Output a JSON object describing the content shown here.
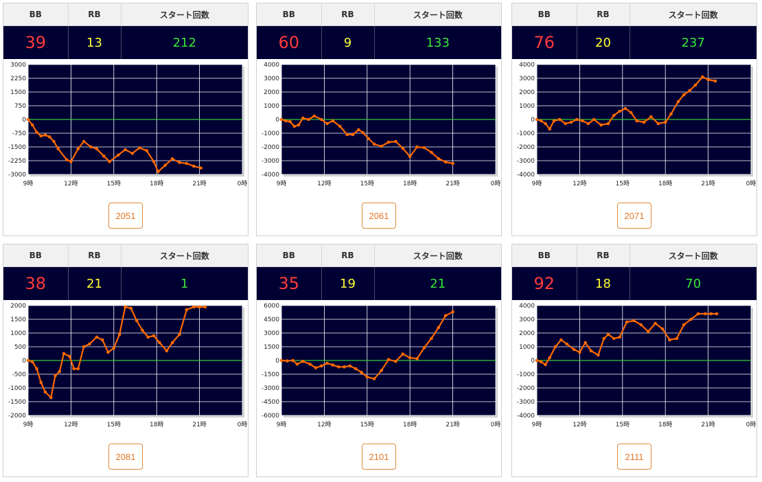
{
  "headers": {
    "bb": "BB",
    "rb": "RB",
    "start": "スタート回数"
  },
  "colors": {
    "bb": "#ff3b3b",
    "rb": "#ffff33",
    "start": "#39e639",
    "plot_bg": "#000033",
    "line": "#ff6a00",
    "zero_line": "#33cc33",
    "button": "#e0782a"
  },
  "cards": [
    {
      "bb": "39",
      "rb": "13",
      "start": "212",
      "machine": "2051"
    },
    {
      "bb": "60",
      "rb": "9",
      "start": "133",
      "machine": "2061"
    },
    {
      "bb": "76",
      "rb": "20",
      "start": "237",
      "machine": "2071"
    },
    {
      "bb": "38",
      "rb": "21",
      "start": "1",
      "machine": "2081"
    },
    {
      "bb": "35",
      "rb": "19",
      "start": "21",
      "machine": "2101"
    },
    {
      "bb": "92",
      "rb": "18",
      "start": "70",
      "machine": "2111"
    }
  ],
  "chart_data": [
    {
      "type": "line",
      "x_ticks": [
        "9時",
        "12時",
        "15時",
        "18時",
        "21時",
        "0時"
      ],
      "xlim": [
        9,
        24
      ],
      "y_ticks": [
        "3000",
        "2250",
        "1500",
        "750",
        "0",
        "-750",
        "-1500",
        "-2250",
        "-3000"
      ],
      "ylim": [
        -3000,
        3000
      ],
      "grid": true,
      "x": [
        9.0,
        9.3,
        9.6,
        9.9,
        10.2,
        10.5,
        10.8,
        11.1,
        11.7,
        12.0,
        12.5,
        12.9,
        13.4,
        13.8,
        14.3,
        14.7,
        15.3,
        15.8,
        16.3,
        16.8,
        17.3,
        17.8,
        18.1,
        18.6,
        19.1,
        19.6,
        20.1,
        20.6,
        21.1
      ],
      "y": [
        0,
        -300,
        -700,
        -900,
        -850,
        -950,
        -1200,
        -1600,
        -2200,
        -2300,
        -1600,
        -1200,
        -1500,
        -1600,
        -2000,
        -2300,
        -1950,
        -1650,
        -1850,
        -1550,
        -1700,
        -2300,
        -2850,
        -2500,
        -2150,
        -2350,
        -2400,
        -2550,
        -2650
      ]
    },
    {
      "type": "line",
      "x_ticks": [
        "9時",
        "12時",
        "15時",
        "18時",
        "21時",
        "0時"
      ],
      "xlim": [
        9,
        24
      ],
      "y_ticks": [
        "4000",
        "3000",
        "2000",
        "1000",
        "0",
        "-1000",
        "-2000",
        "-3000",
        "-4000"
      ],
      "ylim": [
        -4000,
        4000
      ],
      "grid": true,
      "x": [
        9.0,
        9.3,
        9.6,
        9.9,
        10.2,
        10.5,
        10.9,
        11.3,
        11.8,
        12.2,
        12.6,
        13.1,
        13.6,
        14.0,
        14.4,
        14.7,
        15.1,
        15.5,
        16.0,
        16.5,
        17.0,
        17.5,
        18.0,
        18.5,
        19.0,
        19.5,
        20.0,
        20.5,
        21.0
      ],
      "y": [
        0,
        -100,
        -150,
        -500,
        -400,
        100,
        0,
        250,
        0,
        -300,
        -100,
        -500,
        -1100,
        -1100,
        -750,
        -950,
        -1400,
        -1800,
        -1950,
        -1650,
        -1600,
        -2100,
        -2700,
        -2000,
        -2050,
        -2400,
        -2850,
        -3100,
        -3200
      ]
    },
    {
      "type": "line",
      "x_ticks": [
        "9時",
        "12時",
        "15時",
        "18時",
        "21時",
        "0時"
      ],
      "xlim": [
        9,
        24
      ],
      "y_ticks": [
        "4000",
        "3000",
        "2000",
        "1000",
        "0",
        "-1000",
        "-2000",
        "-3000",
        "-4000"
      ],
      "ylim": [
        -4000,
        4000
      ],
      "grid": true,
      "x": [
        9.0,
        9.3,
        9.6,
        9.9,
        10.2,
        10.6,
        11.0,
        11.4,
        11.8,
        12.2,
        12.6,
        13.0,
        13.5,
        14.0,
        14.4,
        14.8,
        15.2,
        15.6,
        16.0,
        16.5,
        17.0,
        17.5,
        18.0,
        18.4,
        18.9,
        19.3,
        19.7,
        20.1,
        20.6,
        21.0,
        21.5
      ],
      "y": [
        0,
        -100,
        -300,
        -700,
        -100,
        0,
        -300,
        -200,
        0,
        -100,
        -300,
        0,
        -400,
        -300,
        300,
        600,
        800,
        500,
        -100,
        -200,
        200,
        -300,
        -200,
        400,
        1300,
        1800,
        2100,
        2500,
        3100,
        2900,
        2800
      ]
    },
    {
      "type": "line",
      "x_ticks": [
        "9時",
        "12時",
        "15時",
        "18時",
        "21時",
        "0時"
      ],
      "xlim": [
        9,
        24
      ],
      "y_ticks": [
        "2000",
        "1500",
        "1000",
        "500",
        "0",
        "-500",
        "-1000",
        "-1500",
        "-2000"
      ],
      "ylim": [
        -2000,
        2000
      ],
      "grid": true,
      "x": [
        9.0,
        9.3,
        9.6,
        9.9,
        10.2,
        10.6,
        10.9,
        11.2,
        11.5,
        11.9,
        12.2,
        12.5,
        12.9,
        13.3,
        13.8,
        14.2,
        14.6,
        15.0,
        15.4,
        15.8,
        16.2,
        16.6,
        17.0,
        17.4,
        17.8,
        18.2,
        18.7,
        19.1,
        19.6,
        20.1,
        20.6,
        21.0,
        21.4
      ],
      "y": [
        0,
        -50,
        -300,
        -800,
        -1150,
        -1350,
        -550,
        -400,
        250,
        150,
        -300,
        -300,
        500,
        600,
        850,
        750,
        300,
        450,
        950,
        1950,
        1900,
        1450,
        1100,
        850,
        900,
        650,
        350,
        650,
        950,
        1850,
        1950,
        1950,
        1950
      ]
    },
    {
      "type": "line",
      "x_ticks": [
        "9時",
        "12時",
        "15時",
        "18時",
        "21時",
        "0時"
      ],
      "xlim": [
        9,
        24
      ],
      "y_ticks": [
        "6000",
        "4500",
        "3000",
        "1500",
        "0",
        "-1500",
        "-3000",
        "-4500",
        "-6000"
      ],
      "ylim": [
        -6000,
        6000
      ],
      "grid": true,
      "x": [
        9.0,
        9.4,
        9.8,
        10.1,
        10.5,
        11.0,
        11.4,
        11.8,
        12.2,
        12.6,
        13.0,
        13.4,
        13.8,
        14.2,
        14.6,
        15.0,
        15.5,
        16.0,
        16.5,
        17.0,
        17.5,
        18.0,
        18.5,
        19.0,
        19.5,
        20.0,
        20.5,
        21.0
      ],
      "y": [
        0,
        -50,
        0,
        -400,
        -100,
        -400,
        -800,
        -600,
        -300,
        -500,
        -700,
        -700,
        -600,
        -900,
        -1300,
        -1800,
        -2000,
        -1100,
        100,
        -100,
        700,
        300,
        200,
        1400,
        2400,
        3600,
        4900,
        5300
      ]
    },
    {
      "type": "line",
      "x_ticks": [
        "9時",
        "12時",
        "15時",
        "18時",
        "21時",
        "0時"
      ],
      "xlim": [
        9,
        24
      ],
      "y_ticks": [
        "4000",
        "3000",
        "2000",
        "1000",
        "0",
        "-1000",
        "-2000",
        "-3000",
        "-4000"
      ],
      "ylim": [
        -4000,
        4000
      ],
      "grid": true,
      "x": [
        9.0,
        9.3,
        9.6,
        9.9,
        10.3,
        10.7,
        11.1,
        11.6,
        12.0,
        12.4,
        12.8,
        13.3,
        13.7,
        14.0,
        14.4,
        14.8,
        15.3,
        15.8,
        16.3,
        16.8,
        17.3,
        17.8,
        18.3,
        18.8,
        19.3,
        19.8,
        20.3,
        20.8,
        21.2,
        21.6
      ],
      "y": [
        0,
        -100,
        -300,
        200,
        1000,
        1500,
        1200,
        800,
        600,
        1300,
        700,
        400,
        1600,
        1900,
        1600,
        1700,
        2800,
        2900,
        2600,
        2100,
        2700,
        2300,
        1500,
        1600,
        2600,
        3000,
        3400,
        3400,
        3400,
        3400
      ]
    }
  ]
}
